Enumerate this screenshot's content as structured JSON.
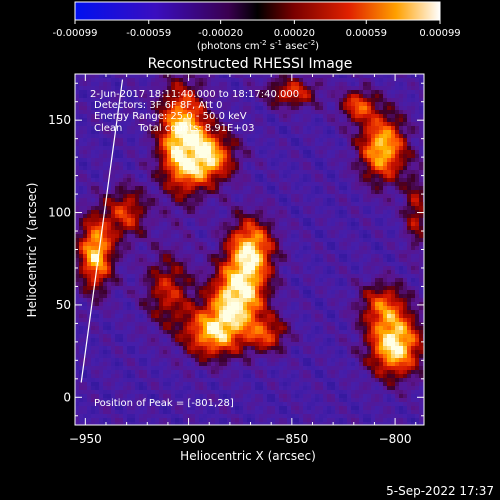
{
  "colorbar": {
    "tick_labels": [
      "-0.00099",
      "-0.00059",
      "-0.00020",
      "0.00020",
      "0.00059",
      "0.00099"
    ],
    "units_prefix": "(photons cm",
    "units_exp1": "-2",
    "units_mid": " s",
    "units_exp2": "-1",
    "units_mid2": " asec",
    "units_exp3": "-2",
    "units_suffix": ")",
    "range": [
      -0.00099,
      0.00099
    ]
  },
  "date_footer": "5-Sep-2022 17:37",
  "chart_data": {
    "type": "heatmap",
    "title": "Reconstructed RHESSI Image",
    "xlabel": "Heliocentric X (arcsec)",
    "ylabel": "Heliocentric Y (arcsec)",
    "xlim": [
      -955,
      -786
    ],
    "ylim": [
      -15,
      175
    ],
    "xticks": [
      -950,
      -900,
      -850,
      -800
    ],
    "yticks": [
      0,
      50,
      100,
      150
    ],
    "xtick_labels": [
      "−950",
      "−900",
      "−850",
      "−800"
    ],
    "ytick_labels": [
      "0",
      "50",
      "100",
      "150"
    ],
    "annotations": [
      "2-Jun-2017 18:11:40.000 to 18:17:40.000",
      "Detectors: 3F 6F 8F, Att 0",
      "Energy Range: 25.0 - 50.0 keV",
      "Clean     Total counts: 8.91E+03"
    ],
    "peak_label": "Position of Peak = [-801,28]",
    "peak": [
      -801,
      28
    ],
    "limb_line": [
      [
        -952,
        8
      ],
      [
        -932,
        172
      ]
    ],
    "sources": [
      {
        "x": -903,
        "y": 140,
        "amp": 1.0,
        "sx": 8,
        "sy": 20
      },
      {
        "x": -890,
        "y": 130,
        "amp": 0.8,
        "sx": 9,
        "sy": 10
      },
      {
        "x": -930,
        "y": 100,
        "amp": 0.55,
        "sx": 7,
        "sy": 10
      },
      {
        "x": -945,
        "y": 78,
        "amp": 0.9,
        "sx": 6,
        "sy": 14
      },
      {
        "x": -870,
        "y": 80,
        "amp": 0.9,
        "sx": 8,
        "sy": 12
      },
      {
        "x": -876,
        "y": 55,
        "amp": 1.0,
        "sx": 9,
        "sy": 12
      },
      {
        "x": -888,
        "y": 35,
        "amp": 0.85,
        "sx": 10,
        "sy": 10
      },
      {
        "x": -862,
        "y": 34,
        "amp": 0.55,
        "sx": 7,
        "sy": 7
      },
      {
        "x": -910,
        "y": 58,
        "amp": 0.5,
        "sx": 8,
        "sy": 14
      },
      {
        "x": -800,
        "y": 28,
        "amp": 1.0,
        "sx": 9,
        "sy": 12
      },
      {
        "x": -806,
        "y": 50,
        "amp": 0.55,
        "sx": 8,
        "sy": 9
      },
      {
        "x": -806,
        "y": 135,
        "amp": 0.9,
        "sx": 8,
        "sy": 13
      },
      {
        "x": -818,
        "y": 158,
        "amp": 0.6,
        "sx": 6,
        "sy": 6
      },
      {
        "x": -850,
        "y": 165,
        "amp": 0.55,
        "sx": 9,
        "sy": 6
      },
      {
        "x": -790,
        "y": 100,
        "amp": 0.45,
        "sx": 4,
        "sy": 14
      }
    ]
  }
}
